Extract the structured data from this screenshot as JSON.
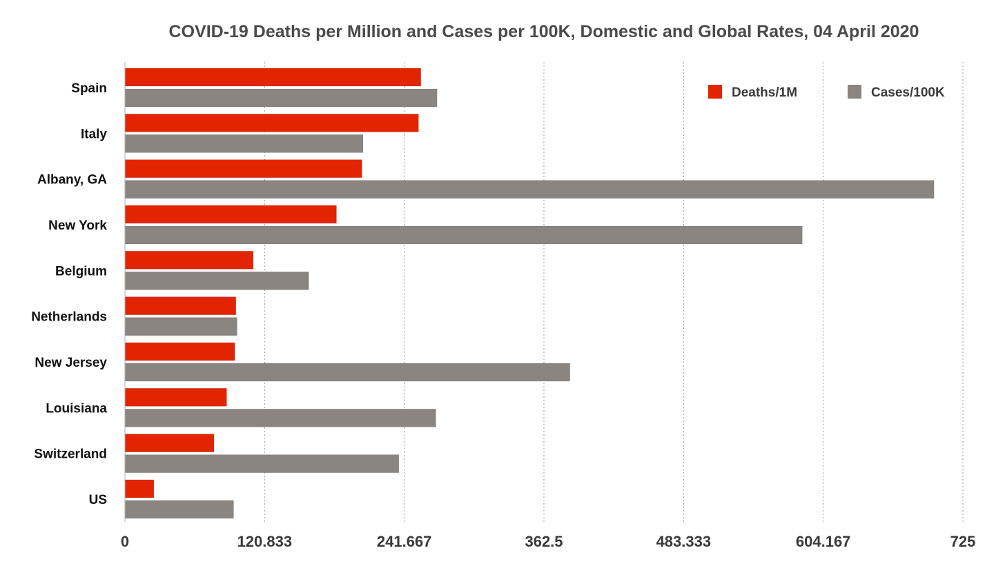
{
  "chart_data": {
    "type": "bar",
    "orientation": "horizontal",
    "title": "COVID-19 Deaths per Million and Cases per 100K, Domestic and Global Rates, 04 April 2020",
    "categories": [
      "Spain",
      "Italy",
      "Albany, GA",
      "New York",
      "Belgium",
      "Netherlands",
      "New Jersey",
      "Louisiana",
      "Switzerland",
      "US"
    ],
    "series": [
      {
        "name": "Deaths/1M",
        "color": "#e32400",
        "values": [
          256,
          254,
          205,
          183,
          111,
          96,
          95,
          88,
          77,
          25
        ]
      },
      {
        "name": "Cases/100K",
        "color": "#8a8580",
        "values": [
          270,
          206,
          700,
          586,
          159,
          97,
          385,
          269,
          237,
          94
        ]
      }
    ],
    "xlim": [
      0,
      725
    ],
    "xticks": [
      "0",
      "120.833",
      "241.667",
      "362.5",
      "483.333",
      "604.167",
      "725"
    ],
    "grid": "vertical dotted",
    "legend_position": "top-right"
  }
}
